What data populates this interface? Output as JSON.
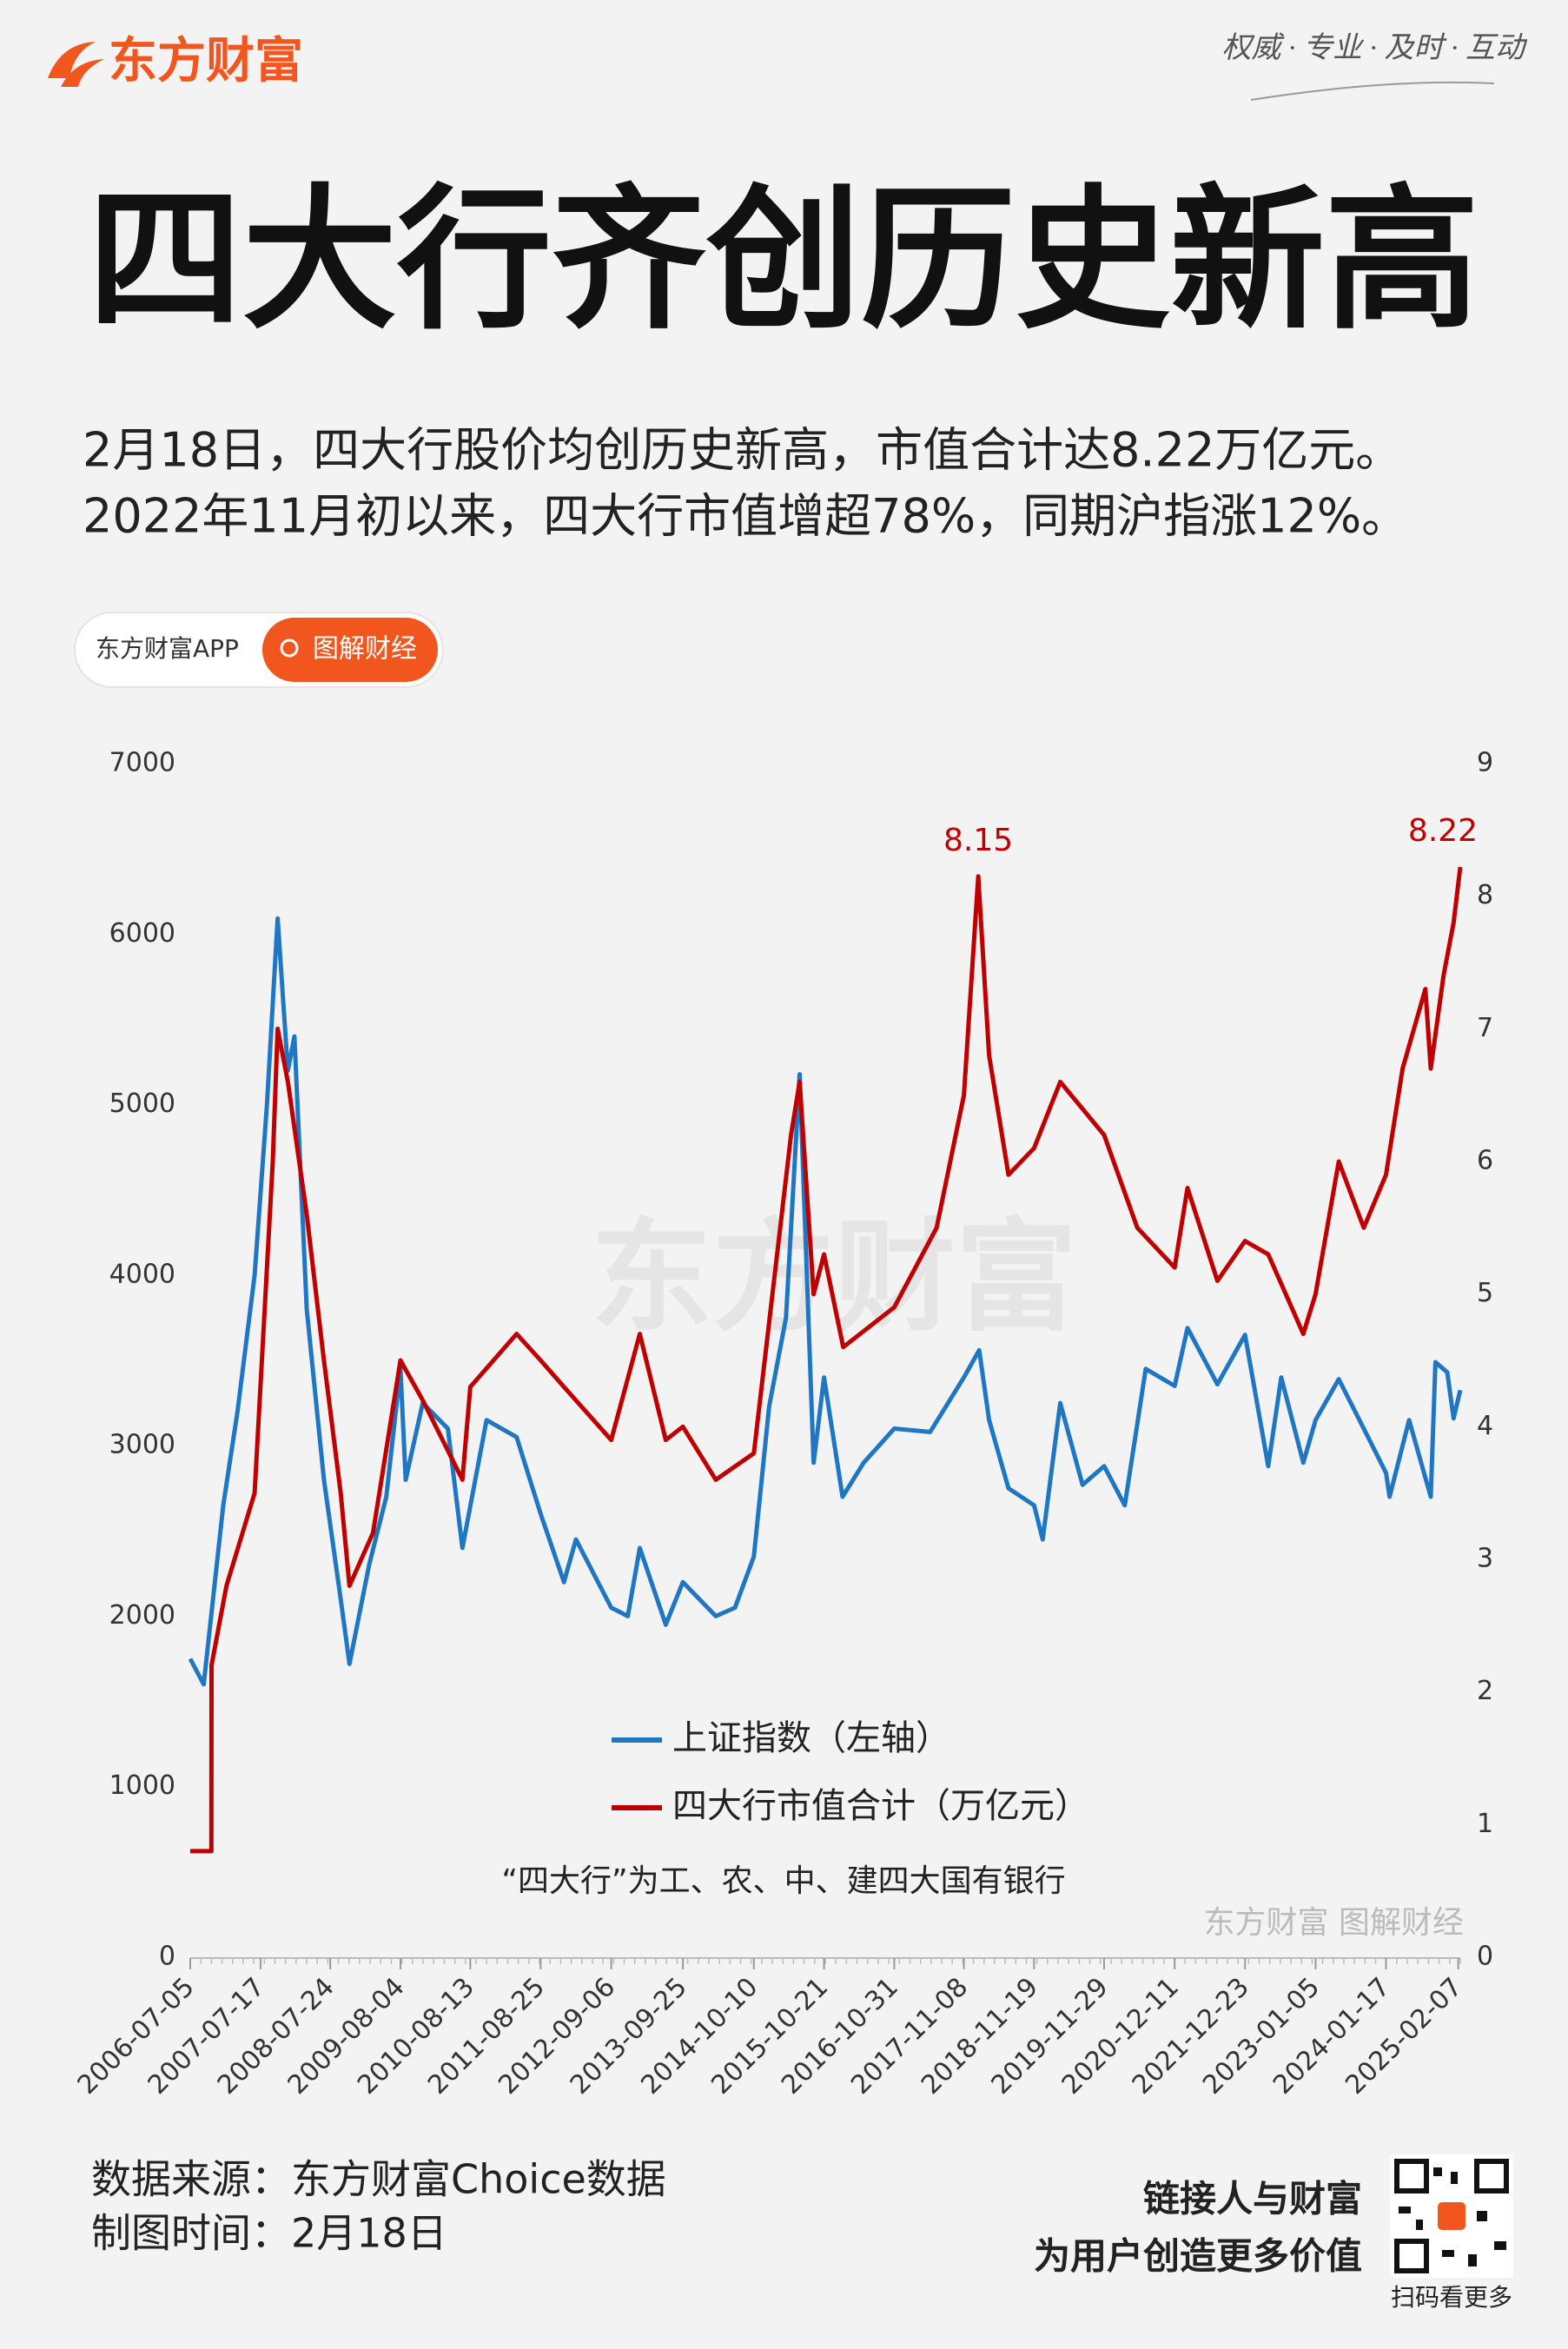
{
  "header": {
    "brand": "东方财富",
    "slogan": "权威 · 专业 · 及时 · 互动"
  },
  "badge": {
    "app": "东方财富APP",
    "tag": "图解财经"
  },
  "chart_data": {
    "type": "line",
    "title": "四大行齐创历史新高",
    "subtitle": [
      "2月18日，四大行股价均创历史新高，市值合计达8.22万亿元。",
      "2022年11月初以来，四大行市值增超78%，同期沪指涨12%。"
    ],
    "xlim": [
      "2006-07-05",
      "2025-02-18"
    ],
    "xticks": [
      "2006-07-05",
      "2007-07-17",
      "2008-07-24",
      "2009-08-04",
      "2010-08-13",
      "2011-08-25",
      "2012-09-06",
      "2013-09-25",
      "2014-10-10",
      "2015-10-21",
      "2016-10-31",
      "2017-11-08",
      "2018-11-19",
      "2019-11-29",
      "2020-12-11",
      "2021-12-23",
      "2023-01-05",
      "2024-01-17",
      "2025-02-07"
    ],
    "ylim": [
      0,
      7000
    ],
    "yticks": [
      0,
      1000,
      2000,
      3000,
      4000,
      5000,
      6000,
      7000
    ],
    "y2lim": [
      0,
      9
    ],
    "y2ticks": [
      0,
      1,
      2,
      3,
      4,
      5,
      6,
      7,
      8,
      9
    ],
    "series": [
      {
        "name": "上证指数（左轴）",
        "color": "#1f77c4",
        "x": [
          "2006-07-05",
          "2006-09-15",
          "2006-12-29",
          "2007-03-15",
          "2007-06-15",
          "2007-08-20",
          "2007-10-16",
          "2007-12-10",
          "2008-01-14",
          "2008-03-20",
          "2008-06-20",
          "2008-09-18",
          "2008-11-04",
          "2009-02-17",
          "2009-05-20",
          "2009-08-04",
          "2009-09-01",
          "2009-12-01",
          "2010-04-15",
          "2010-07-02",
          "2010-11-08",
          "2011-04-18",
          "2011-08-25",
          "2011-12-28",
          "2012-03-01",
          "2012-09-06",
          "2012-12-04",
          "2013-02-06",
          "2013-06-25",
          "2013-09-25",
          "2014-03-20",
          "2014-07-01",
          "2014-10-10",
          "2014-12-31",
          "2015-03-31",
          "2015-06-12",
          "2015-08-26",
          "2015-10-21",
          "2016-01-28",
          "2016-05-20",
          "2016-10-31",
          "2017-05-11",
          "2017-11-08",
          "2018-01-29",
          "2018-03-23",
          "2018-07-05",
          "2018-11-19",
          "2019-01-04",
          "2019-04-08",
          "2019-08-06",
          "2019-11-29",
          "2020-03-19",
          "2020-07-09",
          "2020-12-11",
          "2021-02-18",
          "2021-07-28",
          "2021-12-23",
          "2022-04-26",
          "2022-07-05",
          "2022-10-31",
          "2023-01-05",
          "2023-05-09",
          "2023-09-20",
          "2024-01-17",
          "2024-02-05",
          "2024-05-20",
          "2024-09-13",
          "2024-10-08",
          "2024-12-10",
          "2025-01-13",
          "2025-02-18"
        ],
        "values": [
          1750,
          1600,
          2650,
          3200,
          4000,
          5000,
          6092,
          5200,
          5400,
          3800,
          2800,
          2100,
          1720,
          2300,
          2700,
          3450,
          2800,
          3250,
          3100,
          2400,
          3150,
          3050,
          2600,
          2200,
          2450,
          2050,
          2000,
          2400,
          1950,
          2200,
          2000,
          2050,
          2350,
          3230,
          3750,
          5178,
          2900,
          3400,
          2700,
          2900,
          3100,
          3080,
          3400,
          3560,
          3150,
          2750,
          2650,
          2450,
          3250,
          2770,
          2880,
          2650,
          3450,
          3350,
          3690,
          3360,
          3650,
          2880,
          3400,
          2900,
          3150,
          3390,
          3100,
          2840,
          2700,
          3150,
          2700,
          3490,
          3430,
          3160,
          3325
        ]
      },
      {
        "name": "四大行市值合计（万亿元）",
        "color": "#c00000",
        "axis": "y2",
        "x": [
          "2006-07-05",
          "2006-10-26",
          "2006-10-27",
          "2007-01-15",
          "2007-06-15",
          "2007-09-20",
          "2007-10-16",
          "2007-12-10",
          "2008-03-20",
          "2008-06-20",
          "2008-09-18",
          "2008-11-04",
          "2009-03-10",
          "2009-08-04",
          "2009-12-01",
          "2010-07-02",
          "2010-08-13",
          "2011-04-18",
          "2011-08-25",
          "2011-12-28",
          "2012-09-06",
          "2013-02-06",
          "2013-06-25",
          "2013-09-25",
          "2014-03-20",
          "2014-10-10",
          "2015-04-27",
          "2015-06-12",
          "2015-08-26",
          "2015-10-21",
          "2016-02-01",
          "2016-10-31",
          "2017-06-15",
          "2017-11-08",
          "2018-01-24",
          "2018-03-23",
          "2018-07-05",
          "2018-11-19",
          "2019-04-08",
          "2019-11-29",
          "2020-05-25",
          "2020-12-11",
          "2021-02-18",
          "2021-07-28",
          "2021-12-23",
          "2022-04-26",
          "2022-10-31",
          "2023-01-05",
          "2023-05-09",
          "2023-09-20",
          "2024-01-17",
          "2024-04-15",
          "2024-08-15",
          "2024-09-13",
          "2024-11-20",
          "2025-01-13",
          "2025-02-18"
        ],
        "values": [
          0.8,
          0.8,
          2.2,
          2.8,
          3.5,
          6.0,
          7.0,
          6.6,
          5.6,
          4.5,
          3.5,
          2.8,
          3.2,
          4.5,
          4.2,
          3.6,
          4.3,
          4.7,
          4.5,
          4.3,
          3.9,
          4.7,
          3.9,
          4.0,
          3.6,
          3.8,
          6.2,
          6.6,
          5.0,
          5.3,
          4.6,
          4.9,
          5.5,
          6.5,
          8.15,
          6.8,
          5.9,
          6.1,
          6.6,
          6.2,
          5.5,
          5.2,
          5.8,
          5.1,
          5.4,
          5.3,
          4.7,
          5.0,
          6.0,
          5.5,
          5.9,
          6.7,
          7.3,
          6.7,
          7.4,
          7.8,
          8.22
        ],
        "value_labels": [
          null,
          null,
          null,
          null,
          null,
          null,
          null,
          null,
          null,
          null,
          null,
          null,
          null,
          null,
          null,
          null,
          null,
          null,
          null,
          null,
          null,
          null,
          null,
          null,
          null,
          null,
          null,
          null,
          null,
          null,
          null,
          null,
          null,
          null,
          "8.15",
          null,
          null,
          null,
          null,
          null,
          null,
          null,
          null,
          null,
          null,
          null,
          null,
          null,
          null,
          null,
          null,
          null,
          null,
          null,
          null,
          null,
          "8.22"
        ]
      }
    ],
    "note": "“四大行”为工、农、中、建四大国有银行",
    "watermark": "东方财富 图解财经"
  },
  "footer": {
    "source": "数据来源：东方财富Choice数据",
    "time": "制图时间：2月18日",
    "slogan": [
      "链接人与财富",
      "为用户创造更多价值"
    ],
    "qr_caption": "扫码看更多"
  }
}
